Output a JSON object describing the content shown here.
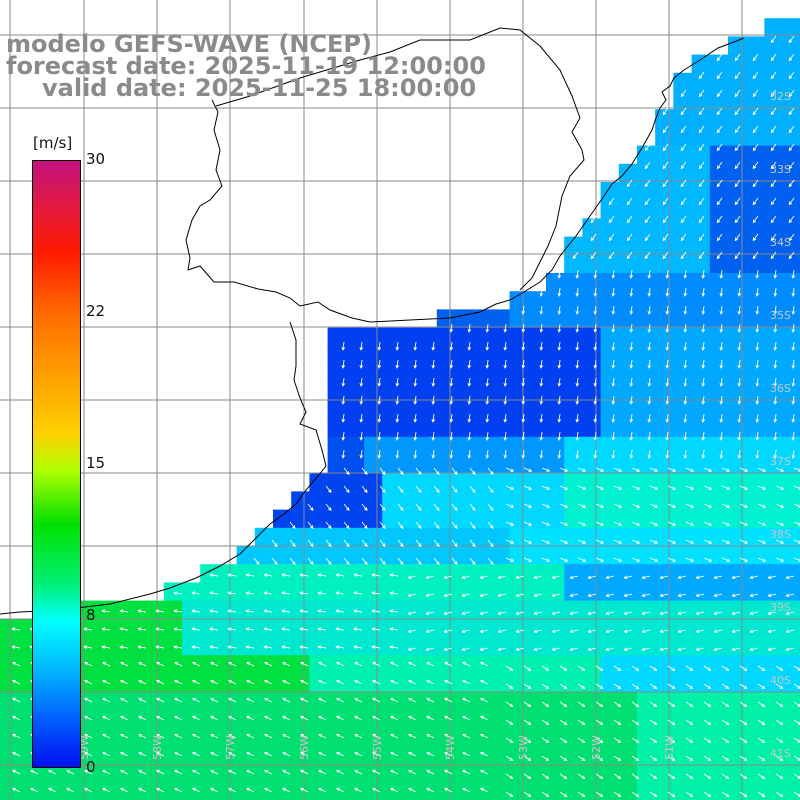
{
  "title": {
    "line1": "modelo GEFS-WAVE (NCEP)",
    "line2": "forecast date: 2025-11-19 12:00:00",
    "line3": "valid date: 2025-11-25 18:00:00"
  },
  "colorbar": {
    "unit": "[m/s]",
    "ticks": [
      "30",
      "22",
      "15",
      "8",
      "0"
    ],
    "colors": [
      "#c2127e",
      "#ff1a00",
      "#ff6a00",
      "#ffd000",
      "#00e000",
      "#00ffff",
      "#00b5ff",
      "#0010f0"
    ]
  },
  "axes": {
    "lat_labels": [
      "32S",
      "33S",
      "34S",
      "35S",
      "36S",
      "37S",
      "38S",
      "39S",
      "40S",
      "41S"
    ],
    "lon_labels": [
      "59W",
      "58W",
      "57W",
      "56W",
      "55W",
      "54W",
      "53W",
      "52W",
      "51W"
    ]
  },
  "colors": {
    "land": "#ffffff",
    "grid": "#8a8a8a",
    "coast": "#000000",
    "arrow": "#ffffff",
    "title_text": "#8a8a8a"
  }
}
